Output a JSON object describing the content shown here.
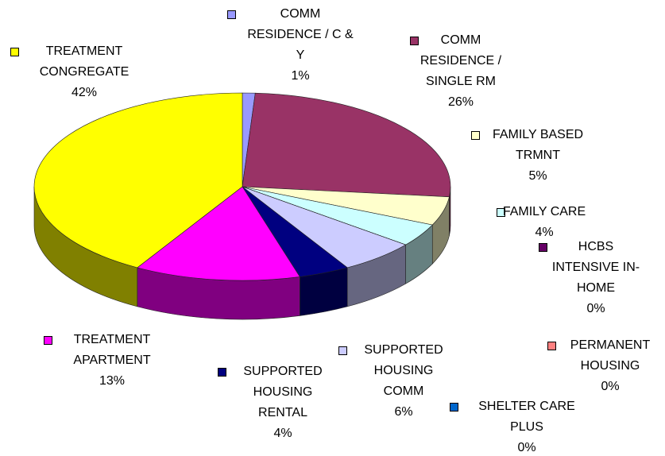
{
  "chart_data": {
    "type": "pie",
    "categories": [
      "COMM RESIDENCE / C & Y",
      "COMM RESIDENCE / SINGLE RM",
      "FAMILY BASED TRMNT",
      "FAMILY CARE",
      "HCBS INTENSIVE IN-HOME",
      "PERMANENT HOUSING",
      "SHELTER CARE PLUS",
      "SUPPORTED HOUSING COMM",
      "SUPPORTED HOUSING RENTAL",
      "TREATMENT APARTMENT",
      "TREATMENT CONGREGATE"
    ],
    "values": [
      1,
      26,
      5,
      4,
      0,
      0,
      0,
      6,
      4,
      13,
      42
    ],
    "value_labels": [
      "1%",
      "26%",
      "5%",
      "4%",
      "0%",
      "0%",
      "0%",
      "6%",
      "4%",
      "13%",
      "42%"
    ],
    "colors": [
      "#9999ff",
      "#993366",
      "#ffffcc",
      "#ccffff",
      "#660066",
      "#ff8080",
      "#0066cc",
      "#ccccff",
      "#000080",
      "#ff00ff",
      "#ffff00"
    ]
  }
}
